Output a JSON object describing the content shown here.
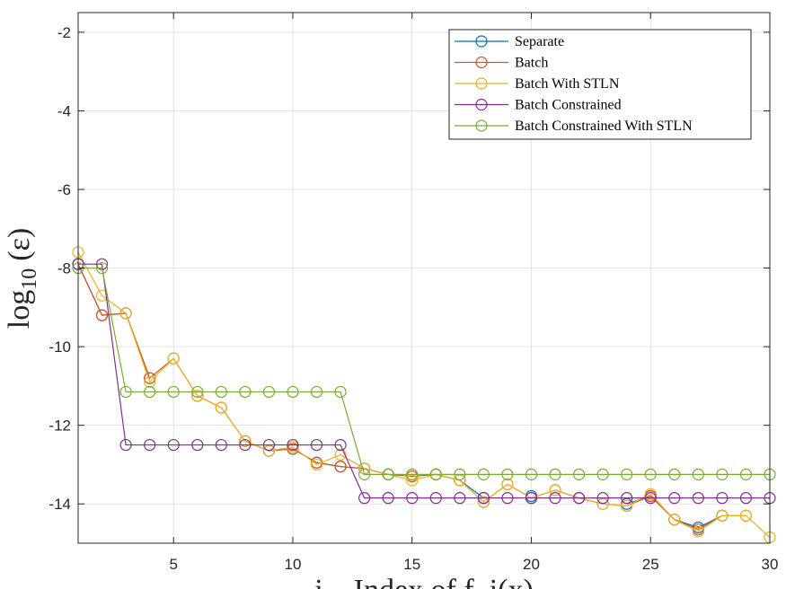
{
  "chart_data": {
    "type": "line",
    "title": "",
    "xlabel": "i – Index of f_i(x)",
    "ylabel_main": "log",
    "ylabel_sub": "10",
    "ylabel_arg": "(ε)",
    "xlim": [
      1,
      30
    ],
    "ylim": [
      -15,
      -1.5
    ],
    "xticks": [
      5,
      10,
      15,
      20,
      25,
      30
    ],
    "yticks": [
      -2,
      -4,
      -6,
      -8,
      -10,
      -12,
      -14
    ],
    "grid": true,
    "legend_position": "top-right",
    "x": [
      1,
      2,
      3,
      4,
      5,
      6,
      7,
      8,
      9,
      10,
      11,
      12,
      13,
      14,
      15,
      16,
      17,
      18,
      19,
      20,
      21,
      22,
      23,
      24,
      25,
      26,
      27,
      28,
      29,
      30
    ],
    "series": [
      {
        "name": "Separate",
        "color": "#0072BD",
        "values": [
          -7.9,
          -9.2,
          -9.15,
          -10.8,
          null,
          null,
          null,
          -12.4,
          -12.65,
          -12.6,
          -12.95,
          -13.05,
          -13.1,
          -13.25,
          null,
          -13.25,
          -13.4,
          -13.85,
          null,
          -13.8,
          null,
          -13.85,
          null,
          -14.0,
          -13.8,
          -14.4,
          -14.6,
          -14.3,
          null,
          null
        ]
      },
      {
        "name": "Batch",
        "color": "#D95319",
        "values": [
          -7.9,
          -9.2,
          -9.15,
          -10.8,
          -10.3,
          -11.25,
          -11.55,
          -12.4,
          -12.65,
          -12.6,
          -12.95,
          -13.05,
          -13.1,
          -13.25,
          -13.3,
          -13.25,
          -13.4,
          -13.95,
          -13.5,
          -13.85,
          -13.65,
          -13.85,
          -14.0,
          -14.05,
          -13.8,
          -14.4,
          -14.65,
          -14.3,
          -14.3,
          null
        ]
      },
      {
        "name": "Batch With STLN",
        "color": "#EDB120",
        "values": [
          -7.6,
          -8.7,
          -9.15,
          -10.9,
          -10.3,
          -11.25,
          -11.55,
          -12.4,
          -12.65,
          -12.55,
          -13.0,
          -12.75,
          -13.1,
          -13.25,
          -13.4,
          -13.25,
          -13.4,
          -13.95,
          -13.5,
          -13.85,
          -13.65,
          -13.85,
          -14.0,
          -14.05,
          -13.75,
          -14.4,
          -14.7,
          -14.3,
          -14.3,
          -14.85
        ]
      },
      {
        "name": "Batch Constrained",
        "color": "#7E2F8E",
        "values": [
          -7.9,
          -7.9,
          -12.5,
          -12.5,
          -12.5,
          -12.5,
          -12.5,
          -12.5,
          -12.5,
          -12.5,
          -12.5,
          -12.5,
          -13.85,
          -13.85,
          -13.85,
          -13.85,
          -13.85,
          -13.85,
          -13.85,
          -13.85,
          -13.85,
          -13.85,
          -13.85,
          -13.85,
          -13.85,
          -13.85,
          -13.85,
          -13.85,
          -13.85,
          -13.85
        ]
      },
      {
        "name": "Batch Constrained With STLN",
        "color": "#77AC30",
        "values": [
          -8.0,
          -8.0,
          -11.15,
          -11.15,
          -11.15,
          -11.15,
          -11.15,
          -11.15,
          -11.15,
          -11.15,
          -11.15,
          -11.15,
          -13.25,
          -13.25,
          -13.25,
          -13.25,
          -13.25,
          -13.25,
          -13.25,
          -13.25,
          -13.25,
          -13.25,
          -13.25,
          -13.25,
          -13.25,
          -13.25,
          -13.25,
          -13.25,
          -13.25,
          -13.25
        ]
      }
    ]
  }
}
